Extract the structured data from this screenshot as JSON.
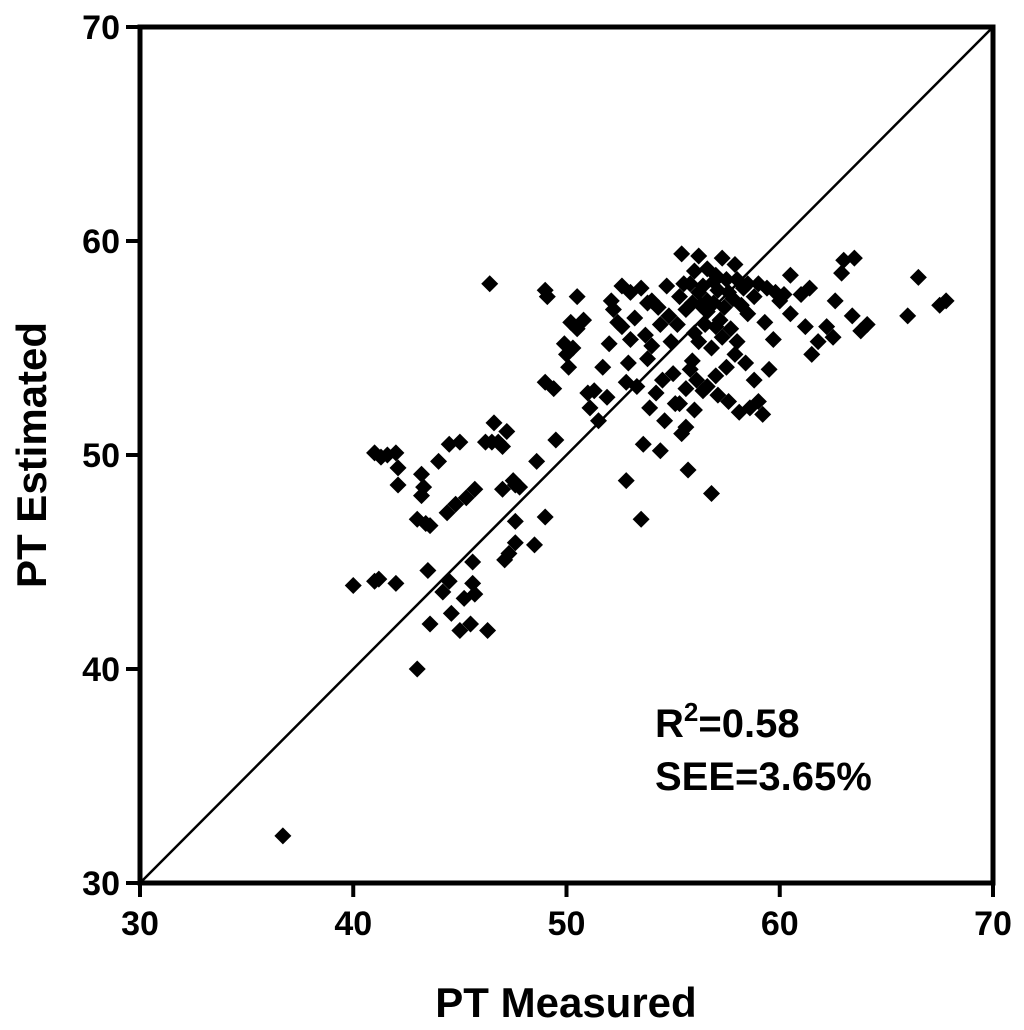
{
  "chart_data": {
    "type": "scatter",
    "xlabel": "PT Measured",
    "ylabel": "PT Estimated",
    "xlim": [
      30,
      70
    ],
    "ylim": [
      30,
      70
    ],
    "x_ticks": [
      "30",
      "40",
      "50",
      "60",
      "70"
    ],
    "y_ticks": [
      "30",
      "40",
      "50",
      "60",
      "70"
    ],
    "grid": false,
    "identity_line": true,
    "marker": "diamond",
    "marker_color": "#000000",
    "annotations": {
      "r2_prefix": "R",
      "r2_superscript": "2",
      "r2_value": "=0.58",
      "see": "SEE=3.65%"
    },
    "points": [
      [
        36.7,
        32.2
      ],
      [
        40.0,
        43.9
      ],
      [
        41.0,
        44.1
      ],
      [
        41.2,
        44.2
      ],
      [
        42.0,
        44.0
      ],
      [
        43.0,
        40.0
      ],
      [
        43.5,
        44.6
      ],
      [
        43.6,
        42.1
      ],
      [
        44.2,
        43.6
      ],
      [
        44.5,
        44.1
      ],
      [
        44.6,
        42.6
      ],
      [
        45.0,
        41.8
      ],
      [
        45.2,
        43.3
      ],
      [
        45.6,
        44.0
      ],
      [
        45.6,
        45.0
      ],
      [
        45.7,
        43.5
      ],
      [
        45.5,
        42.1
      ],
      [
        46.3,
        41.8
      ],
      [
        41.0,
        50.1
      ],
      [
        41.3,
        49.9
      ],
      [
        41.6,
        50.0
      ],
      [
        42.0,
        50.1
      ],
      [
        42.1,
        49.4
      ],
      [
        42.1,
        48.6
      ],
      [
        43.0,
        47.0
      ],
      [
        43.2,
        49.1
      ],
      [
        43.3,
        48.5
      ],
      [
        43.4,
        46.8
      ],
      [
        43.6,
        46.7
      ],
      [
        43.2,
        48.1
      ],
      [
        44.0,
        49.7
      ],
      [
        44.4,
        47.3
      ],
      [
        44.5,
        50.5
      ],
      [
        44.8,
        47.7
      ],
      [
        45.0,
        50.6
      ],
      [
        45.3,
        48.0
      ],
      [
        45.7,
        48.4
      ],
      [
        46.2,
        50.6
      ],
      [
        46.5,
        50.6
      ],
      [
        46.6,
        51.5
      ],
      [
        46.8,
        50.6
      ],
      [
        47.0,
        50.4
      ],
      [
        47.2,
        51.1
      ],
      [
        47.5,
        48.8
      ],
      [
        47.6,
        48.6
      ],
      [
        47.8,
        48.5
      ],
      [
        47.0,
        48.4
      ],
      [
        47.1,
        45.1
      ],
      [
        47.3,
        45.4
      ],
      [
        47.6,
        45.9
      ],
      [
        47.6,
        46.9
      ],
      [
        48.5,
        45.8
      ],
      [
        48.6,
        49.7
      ],
      [
        49.0,
        47.1
      ],
      [
        49.5,
        50.7
      ],
      [
        46.4,
        58.0
      ],
      [
        49.0,
        57.7
      ],
      [
        49.1,
        57.4
      ],
      [
        49.0,
        53.4
      ],
      [
        49.4,
        53.1
      ],
      [
        49.9,
        55.2
      ],
      [
        50.0,
        54.7
      ],
      [
        50.1,
        54.1
      ],
      [
        50.2,
        56.2
      ],
      [
        50.3,
        55.0
      ],
      [
        50.5,
        55.9
      ],
      [
        50.5,
        57.4
      ],
      [
        50.8,
        56.3
      ],
      [
        51.0,
        52.9
      ],
      [
        51.1,
        52.2
      ],
      [
        51.3,
        53.0
      ],
      [
        51.5,
        51.6
      ],
      [
        51.7,
        54.1
      ],
      [
        51.9,
        52.7
      ],
      [
        52.0,
        55.2
      ],
      [
        52.2,
        56.8
      ],
      [
        52.4,
        56.2
      ],
      [
        52.6,
        56.0
      ],
      [
        52.6,
        57.9
      ],
      [
        52.8,
        53.4
      ],
      [
        53.0,
        55.4
      ],
      [
        53.2,
        56.4
      ],
      [
        53.5,
        57.8
      ],
      [
        53.6,
        50.5
      ],
      [
        53.7,
        55.6
      ],
      [
        53.8,
        54.5
      ],
      [
        53.9,
        52.2
      ],
      [
        54.0,
        57.2
      ],
      [
        54.2,
        52.9
      ],
      [
        54.4,
        50.2
      ],
      [
        54.6,
        51.6
      ],
      [
        54.7,
        57.9
      ],
      [
        54.9,
        55.3
      ],
      [
        55.0,
        53.8
      ],
      [
        55.3,
        52.4
      ],
      [
        55.5,
        58.0
      ],
      [
        55.6,
        51.3
      ],
      [
        55.7,
        49.3
      ],
      [
        55.8,
        54.0
      ],
      [
        56.0,
        55.7
      ],
      [
        56.2,
        57.6
      ],
      [
        56.4,
        53.0
      ],
      [
        56.6,
        57.2
      ],
      [
        56.8,
        48.2
      ],
      [
        53.5,
        47.0
      ],
      [
        52.8,
        48.8
      ],
      [
        55.4,
        59.4
      ],
      [
        56.2,
        59.3
      ],
      [
        57.3,
        59.2
      ],
      [
        56.0,
        58.6
      ],
      [
        56.6,
        58.7
      ],
      [
        57.0,
        58.4
      ],
      [
        57.5,
        58.2
      ],
      [
        58.0,
        58.2
      ],
      [
        58.5,
        58.0
      ],
      [
        59.0,
        58.0
      ],
      [
        59.4,
        57.8
      ],
      [
        59.8,
        57.6
      ],
      [
        60.2,
        57.5
      ],
      [
        60.5,
        58.4
      ],
      [
        61.0,
        57.5
      ],
      [
        61.2,
        56.0
      ],
      [
        61.5,
        54.7
      ],
      [
        61.8,
        55.3
      ],
      [
        62.2,
        56.0
      ],
      [
        62.5,
        55.5
      ],
      [
        62.6,
        57.2
      ],
      [
        62.9,
        58.5
      ],
      [
        63.0,
        59.1
      ],
      [
        63.5,
        59.2
      ],
      [
        63.4,
        56.5
      ],
      [
        63.8,
        55.8
      ],
      [
        64.1,
        56.1
      ],
      [
        66.0,
        56.5
      ],
      [
        66.5,
        58.3
      ],
      [
        67.5,
        57.0
      ],
      [
        67.8,
        57.2
      ],
      [
        57.8,
        57.3
      ],
      [
        57.4,
        56.9
      ],
      [
        57.1,
        57.7
      ],
      [
        56.9,
        57.1
      ],
      [
        56.6,
        56.7
      ],
      [
        56.3,
        57.0
      ],
      [
        58.2,
        57.0
      ],
      [
        58.5,
        56.6
      ],
      [
        57.7,
        55.9
      ],
      [
        57.2,
        56.3
      ],
      [
        56.5,
        56.1
      ],
      [
        55.9,
        57.1
      ],
      [
        55.6,
        56.8
      ],
      [
        58.0,
        55.3
      ],
      [
        58.4,
        54.3
      ],
      [
        58.8,
        53.5
      ],
      [
        59.0,
        52.5
      ],
      [
        59.2,
        51.9
      ],
      [
        58.6,
        52.2
      ],
      [
        58.1,
        52.0
      ],
      [
        57.6,
        52.5
      ],
      [
        57.1,
        52.8
      ],
      [
        56.6,
        53.2
      ],
      [
        56.1,
        53.5
      ],
      [
        55.6,
        53.1
      ],
      [
        55.1,
        52.4
      ],
      [
        59.5,
        54.0
      ],
      [
        60.0,
        57.2
      ],
      [
        60.5,
        56.6
      ],
      [
        61.4,
        57.8
      ],
      [
        55.2,
        56.1
      ],
      [
        54.8,
        56.5
      ],
      [
        54.3,
        56.9
      ],
      [
        53.8,
        57.1
      ],
      [
        53.0,
        57.6
      ],
      [
        52.1,
        57.2
      ],
      [
        57.9,
        54.7
      ],
      [
        57.5,
        54.1
      ],
      [
        57.0,
        53.7
      ],
      [
        56.0,
        52.1
      ],
      [
        55.4,
        51.0
      ],
      [
        54.5,
        53.5
      ],
      [
        53.3,
        53.2
      ],
      [
        52.9,
        54.3
      ],
      [
        59.3,
        56.2
      ],
      [
        59.7,
        55.4
      ],
      [
        56.8,
        55.0
      ],
      [
        57.3,
        55.5
      ],
      [
        57.9,
        58.9
      ],
      [
        56.2,
        55.3
      ],
      [
        55.9,
        54.4
      ],
      [
        54.4,
        56.1
      ],
      [
        54.0,
        55.1
      ],
      [
        58.8,
        57.4
      ],
      [
        57.6,
        57.6
      ],
      [
        56.4,
        57.9
      ],
      [
        55.3,
        57.4
      ],
      [
        57.0,
        56.0
      ],
      [
        58.3,
        57.8
      ],
      [
        56.9,
        58.1
      ],
      [
        55.8,
        58.0
      ]
    ]
  }
}
